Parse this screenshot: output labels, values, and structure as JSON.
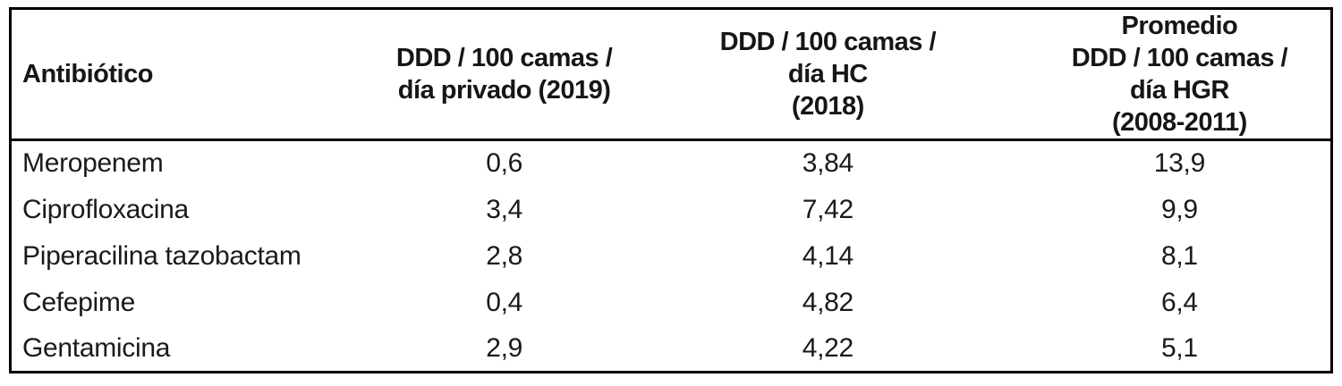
{
  "page": {
    "background": "#ffffff"
  },
  "table": {
    "border_color": "#000000",
    "text_color": "#1a1a1a",
    "headers": [
      "Antibiótico",
      "DDD / 100 camas /\ndía privado (2019)",
      "DDD / 100 camas /\ndía HC\n(2018)",
      "Promedio\nDDD / 100 camas /\ndía HGR\n(2008-2011)"
    ],
    "rows": [
      [
        "Meropenem",
        "0,6",
        "3,84",
        "13,9"
      ],
      [
        "Ciprofloxacina",
        "3,4",
        "7,42",
        "9,9"
      ],
      [
        "Piperacilina tazobactam",
        "2,8",
        "4,14",
        "8,1"
      ],
      [
        "Cefepime",
        "0,4",
        "4,82",
        "6,4"
      ],
      [
        "Gentamicina",
        "2,9",
        "4,22",
        "5,1"
      ]
    ]
  },
  "chart_data": {
    "type": "table",
    "columns": [
      "Antibiótico",
      "DDD / 100 camas / día privado (2019)",
      "DDD / 100 camas / día HC (2018)",
      "Promedio DDD / 100 camas / día HGR (2008-2011)"
    ],
    "rows": [
      {
        "antibiotico": "Meropenem",
        "ddd_100_camas_dia_privado_2019": 0.6,
        "ddd_100_camas_dia_hc_2018": 3.84,
        "promedio_ddd_100_camas_dia_hgr_2008_2011": 13.9
      },
      {
        "antibiotico": "Ciprofloxacina",
        "ddd_100_camas_dia_privado_2019": 3.4,
        "ddd_100_camas_dia_hc_2018": 7.42,
        "promedio_ddd_100_camas_dia_hgr_2008_2011": 9.9
      },
      {
        "antibiotico": "Piperacilina tazobactam",
        "ddd_100_camas_dia_privado_2019": 2.8,
        "ddd_100_camas_dia_hc_2018": 4.14,
        "promedio_ddd_100_camas_dia_hgr_2008_2011": 8.1
      },
      {
        "antibiotico": "Cefepime",
        "ddd_100_camas_dia_privado_2019": 0.4,
        "ddd_100_camas_dia_hc_2018": 4.82,
        "promedio_ddd_100_camas_dia_hgr_2008_2011": 6.4
      },
      {
        "antibiotico": "Gentamicina",
        "ddd_100_camas_dia_privado_2019": 2.9,
        "ddd_100_camas_dia_hc_2018": 4.22,
        "promedio_ddd_100_camas_dia_hgr_2008_2011": 5.1
      }
    ],
    "decimal_separator": ",",
    "notes": "Black outer border and header rule; no internal gridlines between body rows"
  }
}
